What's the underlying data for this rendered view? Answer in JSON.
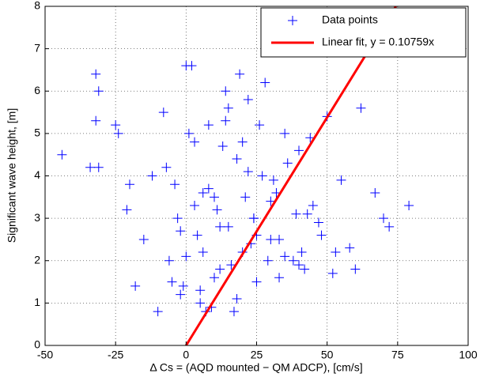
{
  "chart_data": {
    "type": "scatter",
    "x_label": "Δ Cs = (AQD mounted − QM ADCP), [cm/s]",
    "y_label": "Significant wave height, [m]",
    "xlim": [
      -50,
      100
    ],
    "ylim": [
      0,
      8
    ],
    "xticks": [
      -50,
      -25,
      0,
      25,
      50,
      75,
      100
    ],
    "yticks": [
      0,
      1,
      2,
      3,
      4,
      5,
      6,
      7,
      8
    ],
    "grid": true,
    "legend": "upper right",
    "series": [
      {
        "name": "Data points",
        "type": "scatter",
        "color": "#0000ff",
        "x": [
          -44,
          -34,
          -31,
          -32,
          -31,
          -32,
          -25,
          -24,
          -21,
          -18,
          -10,
          -15,
          -12,
          -20,
          -8,
          -5,
          -3,
          -2,
          0,
          2,
          3,
          5,
          6,
          7,
          8,
          10,
          12,
          14,
          15,
          17,
          18,
          20,
          22,
          24,
          25,
          27,
          28,
          30,
          32,
          35,
          38,
          40,
          42,
          45,
          48,
          50,
          52,
          55,
          58,
          62,
          67,
          70,
          72,
          79,
          -6,
          -4,
          -1,
          1,
          4,
          9,
          11,
          13,
          16,
          19,
          21,
          23,
          26,
          29,
          31,
          33,
          36,
          39,
          41,
          44,
          47,
          5,
          8,
          12,
          15,
          18,
          22,
          25,
          30,
          35,
          40,
          -7,
          -2,
          3,
          10,
          20,
          0,
          6,
          14,
          24,
          33,
          43,
          53,
          60
        ],
        "y": [
          4.5,
          4.2,
          4.2,
          6.4,
          6.0,
          5.3,
          5.2,
          5.0,
          3.2,
          1.4,
          0.8,
          2.5,
          4.0,
          3.8,
          5.5,
          1.5,
          3.0,
          1.2,
          6.6,
          6.6,
          4.8,
          1.0,
          2.2,
          0.8,
          5.2,
          3.5,
          1.8,
          6.0,
          2.8,
          0.8,
          4.4,
          2.2,
          5.8,
          3.0,
          1.5,
          4.0,
          6.2,
          2.5,
          3.6,
          5.0,
          2.0,
          4.6,
          1.8,
          3.3,
          2.6,
          5.4,
          1.7,
          3.9,
          2.3,
          5.6,
          3.6,
          3.0,
          2.8,
          3.3,
          2.0,
          3.8,
          1.4,
          5.0,
          2.6,
          0.9,
          3.2,
          4.7,
          1.9,
          6.4,
          3.5,
          2.4,
          5.2,
          2.0,
          3.9,
          1.6,
          4.3,
          3.1,
          2.2,
          4.9,
          2.9,
          1.3,
          3.7,
          2.8,
          5.6,
          1.1,
          4.1,
          2.6,
          3.4,
          2.1,
          1.9,
          4.2,
          2.7,
          3.3,
          1.6,
          4.8,
          2.1,
          3.6,
          5.3,
          3.0,
          2.5,
          3.1,
          2.2,
          1.8
        ]
      },
      {
        "name": "Linear fit, y = 0.10759x",
        "type": "line",
        "color": "#ff0000",
        "x": [
          0,
          74.36
        ],
        "y": [
          0,
          8
        ]
      }
    ]
  }
}
